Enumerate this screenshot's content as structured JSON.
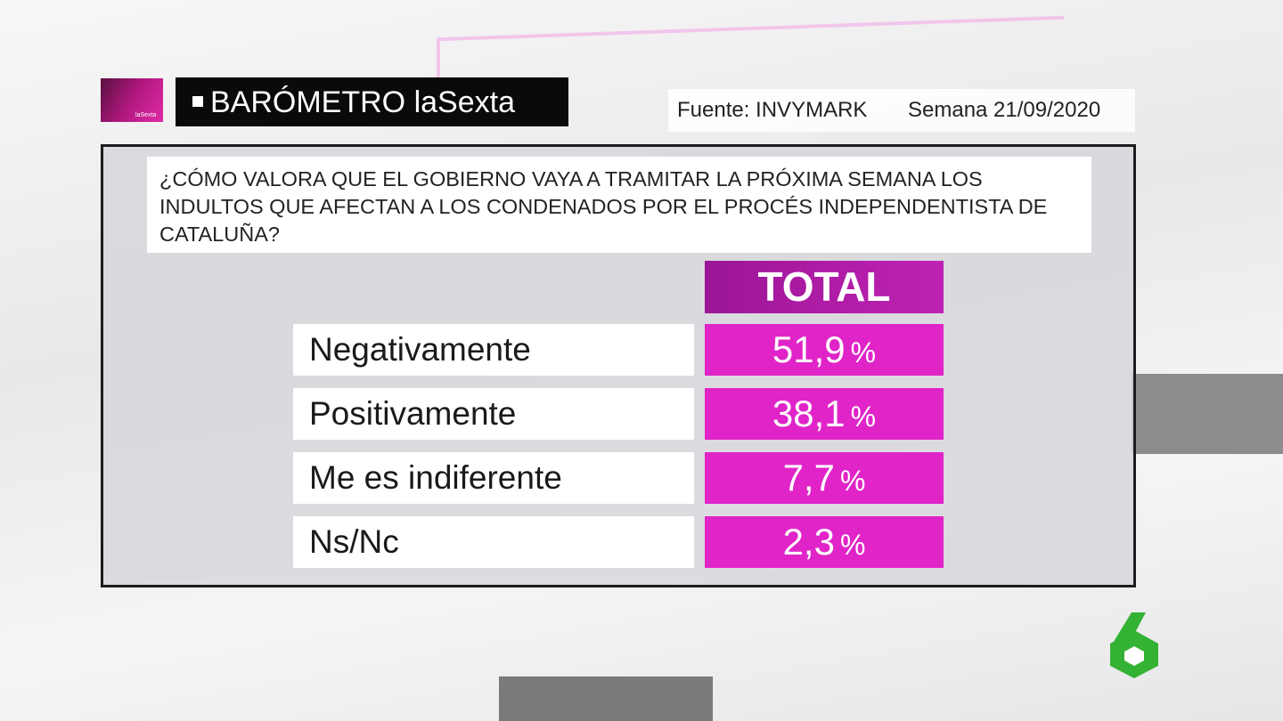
{
  "header": {
    "logo_label": "laSexta",
    "brand": "BARÓMETRO laSexta",
    "source": "Fuente: INVYMARK",
    "week": "Semana 21/09/2020"
  },
  "question": "¿CÓMO VALORA QUE EL GOBIERNO VAYA A TRAMITAR LA PRÓXIMA SEMANA LOS INDULTOS QUE AFECTAN A LOS CONDENADOS POR EL PROCÉS INDEPENDENTISTA DE CATALUÑA?",
  "table": {
    "column": "TOTAL",
    "rows": [
      {
        "label": "Negativamente",
        "value": "51,9",
        "unit": "%"
      },
      {
        "label": "Positivamente",
        "value": "38,1",
        "unit": "%"
      },
      {
        "label": "Me es indiferente",
        "value": "7,7",
        "unit": "%"
      },
      {
        "label": "Ns/Nc",
        "value": "2,3",
        "unit": "%"
      }
    ]
  }
}
